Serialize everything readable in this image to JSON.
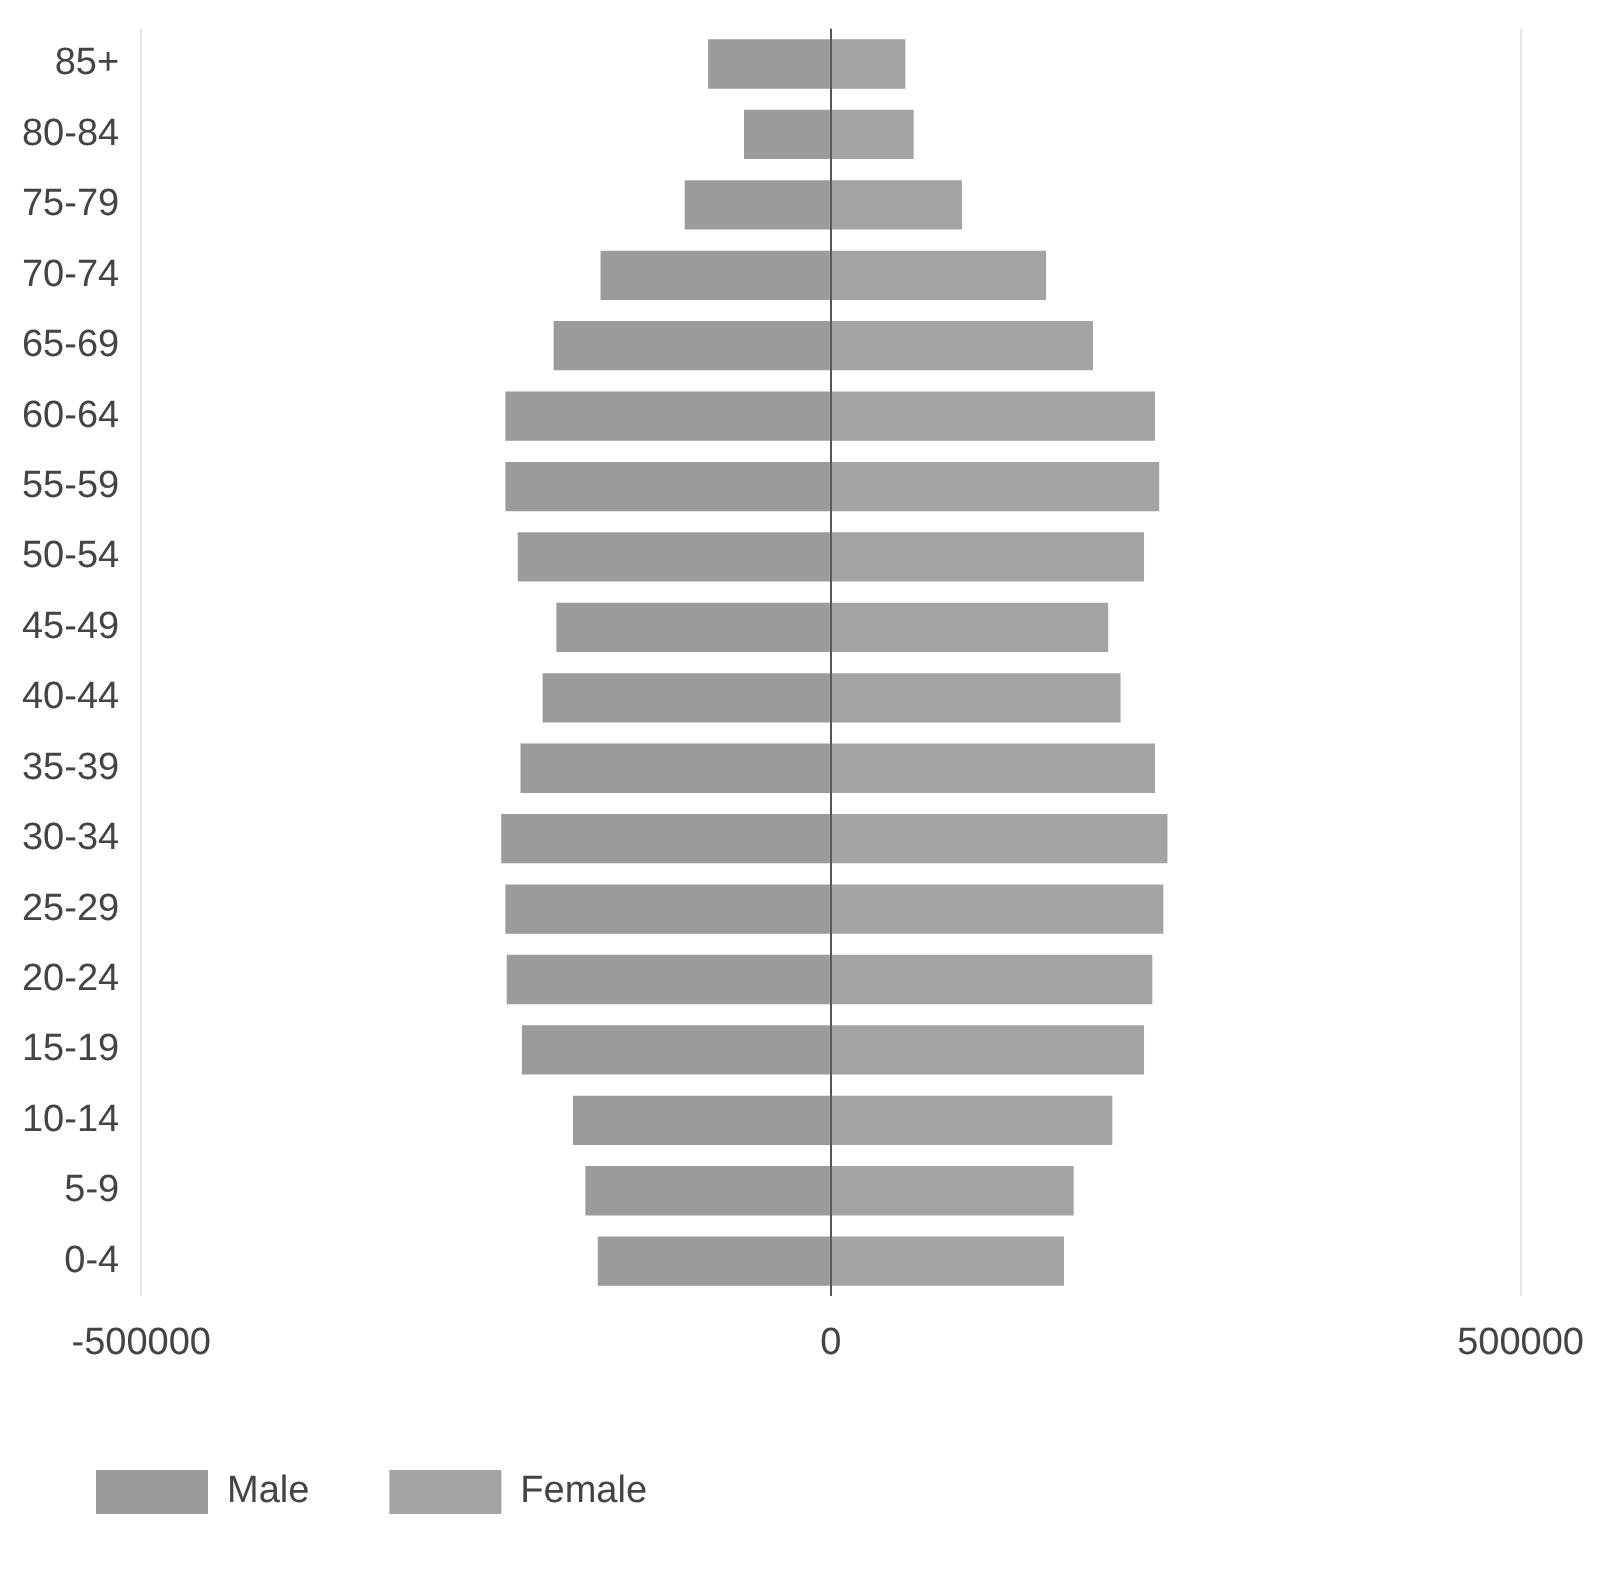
{
  "chart_data": {
    "type": "bar",
    "orientation": "horizontal",
    "stacked": true,
    "categories": [
      "85+",
      "80-84",
      "75-79",
      "70-74",
      "65-69",
      "60-64",
      "55-59",
      "50-54",
      "45-49",
      "40-44",
      "35-39",
      "30-34",
      "25-29",
      "20-24",
      "15-19",
      "10-14",
      "5-9",
      "0-4"
    ],
    "series": [
      {
        "name": "Male",
        "color": "#9b9b9b",
        "values": [
          -89000,
          -63000,
          -106000,
          -167000,
          -201000,
          -236000,
          -236000,
          -227000,
          -199000,
          -209000,
          -225000,
          -239000,
          -236000,
          -235000,
          -224000,
          -187000,
          -178000,
          -169000
        ]
      },
      {
        "name": "Female",
        "color": "#a3a3a3",
        "values": [
          54000,
          60000,
          95000,
          156000,
          190000,
          235000,
          238000,
          227000,
          201000,
          210000,
          235000,
          244000,
          241000,
          233000,
          227000,
          204000,
          176000,
          169000
        ]
      }
    ],
    "xlim": [
      -500000,
      500000
    ],
    "xticks": [
      -500000,
      0,
      500000
    ],
    "grid": "x",
    "legend": "bottom"
  }
}
